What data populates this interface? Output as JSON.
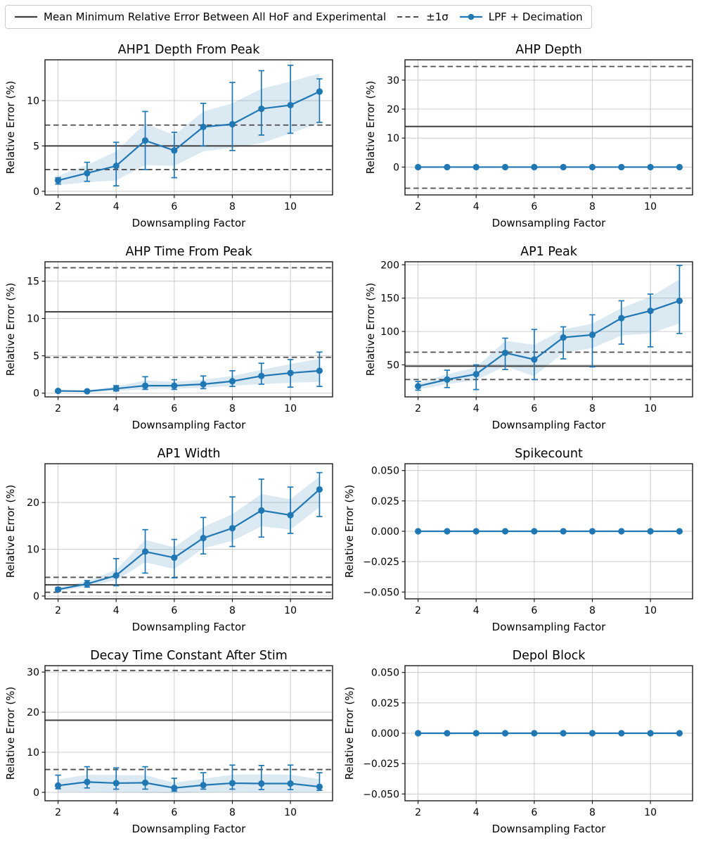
{
  "legend": {
    "items": [
      {
        "type": "solid-line",
        "label": "Mean Minimum Relative Error Between All HoF and Experimental"
      },
      {
        "type": "dashed-line",
        "label": "±1σ"
      },
      {
        "type": "marker-line",
        "label": "LPF + Decimation"
      }
    ]
  },
  "colors": {
    "accent_blue": "#1f77b4",
    "band_fill": "#1f77b4",
    "band_opacity": 0.16,
    "mean_line": "#3f3f3f",
    "sigma_line": "#4d4d4d",
    "grid": "#cccccc",
    "frame": "#1a1a1a",
    "legend_border": "#cccccc"
  },
  "chart_data": [
    {
      "type": "line",
      "title": "AHP1 Depth From Peak",
      "xlabel": "Downsampling Factor",
      "ylabel": "Relative Error (%)",
      "x": [
        2,
        3,
        4,
        5,
        6,
        7,
        8,
        9,
        10,
        11
      ],
      "y": [
        1.2,
        2.0,
        2.8,
        5.6,
        4.5,
        7.1,
        7.4,
        9.1,
        9.5,
        11.0
      ],
      "err_lo": [
        0.8,
        1.1,
        0.6,
        2.4,
        1.5,
        5.0,
        4.5,
        6.2,
        6.4,
        7.6
      ],
      "err_hi": [
        1.5,
        3.2,
        5.4,
        8.8,
        6.5,
        9.7,
        12.0,
        13.3,
        13.9,
        12.4
      ],
      "band_lo": [
        0.7,
        1.0,
        1.2,
        2.9,
        2.8,
        4.4,
        4.8,
        5.3,
        6.4,
        7.5
      ],
      "band_hi": [
        1.7,
        2.9,
        4.4,
        7.5,
        6.2,
        8.8,
        9.7,
        11.3,
        12.1,
        13.0
      ],
      "mean_line": 5.0,
      "sigma_upper": 7.3,
      "sigma_lower": 2.4,
      "xlim": [
        1.55,
        11.45
      ],
      "ylim": [
        -0.4,
        14.5
      ],
      "xticks": [
        2,
        4,
        6,
        8,
        10
      ],
      "xtick_labels": [
        "2",
        "4",
        "6",
        "8",
        "10"
      ],
      "yticks": [
        0,
        5,
        10
      ],
      "ytick_labels": [
        "0",
        "5",
        "10"
      ]
    },
    {
      "type": "line",
      "title": "AHP Depth",
      "xlabel": "Downsampling Factor",
      "ylabel": "Relative Error (%)",
      "x": [
        2,
        3,
        4,
        5,
        6,
        7,
        8,
        9,
        10,
        11
      ],
      "y": [
        0,
        0,
        0,
        0,
        0,
        0,
        0,
        0,
        0,
        0
      ],
      "err_lo": null,
      "err_hi": null,
      "band_lo": null,
      "band_hi": null,
      "mean_line": 14.0,
      "sigma_upper": 34.7,
      "sigma_lower": -7.3,
      "xlim": [
        1.55,
        11.45
      ],
      "ylim": [
        -9.6,
        37
      ],
      "xticks": [
        2,
        4,
        6,
        8,
        10
      ],
      "xtick_labels": [
        "2",
        "4",
        "6",
        "8",
        "10"
      ],
      "yticks": [
        0,
        10,
        20,
        30
      ],
      "ytick_labels": [
        "0",
        "10",
        "20",
        "30"
      ]
    },
    {
      "type": "line",
      "title": "AHP Time From Peak",
      "xlabel": "Downsampling Factor",
      "ylabel": "Relative Error (%)",
      "x": [
        2,
        3,
        4,
        5,
        6,
        7,
        8,
        9,
        10,
        11
      ],
      "y": [
        0.3,
        0.25,
        0.6,
        1.0,
        1.0,
        1.2,
        1.6,
        2.3,
        2.7,
        3.0
      ],
      "err_lo": [
        0.2,
        0.15,
        0.3,
        0.5,
        0.5,
        0.6,
        0.9,
        1.2,
        0.8,
        0.9
      ],
      "err_hi": [
        0.45,
        0.35,
        1.0,
        2.2,
        1.8,
        2.3,
        3.0,
        4.0,
        4.5,
        5.5
      ],
      "band_lo": [
        0.2,
        0.15,
        0.3,
        0.5,
        0.6,
        0.7,
        1.0,
        1.2,
        1.4,
        1.5
      ],
      "band_hi": [
        0.4,
        0.35,
        0.9,
        1.7,
        1.5,
        1.8,
        2.3,
        3.1,
        3.9,
        4.6
      ],
      "mean_line": 10.9,
      "sigma_upper": 16.8,
      "sigma_lower": 4.8,
      "xlim": [
        1.55,
        11.45
      ],
      "ylim": [
        -0.5,
        17.6
      ],
      "xticks": [
        2,
        4,
        6,
        8,
        10
      ],
      "xtick_labels": [
        "2",
        "4",
        "6",
        "8",
        "10"
      ],
      "yticks": [
        0,
        5,
        10,
        15
      ],
      "ytick_labels": [
        "0",
        "5",
        "10",
        "15"
      ]
    },
    {
      "type": "line",
      "title": "AP1 Peak",
      "xlabel": "Downsampling Factor",
      "ylabel": "Relative Error (%)",
      "x": [
        2,
        3,
        4,
        5,
        6,
        7,
        8,
        9,
        10,
        11
      ],
      "y": [
        18,
        28,
        36,
        68,
        58,
        91,
        95,
        120,
        131,
        146
      ],
      "err_lo": [
        12,
        16,
        13,
        43,
        28,
        59,
        47,
        81,
        77,
        97
      ],
      "err_hi": [
        25,
        42,
        50,
        90,
        103,
        107,
        125,
        146,
        156,
        199
      ],
      "band_lo": [
        13,
        21,
        27,
        48,
        33,
        68,
        75,
        94,
        97,
        112
      ],
      "band_hi": [
        22,
        36,
        46,
        86,
        80,
        103,
        112,
        135,
        152,
        178
      ],
      "mean_line": 48,
      "sigma_upper": 69,
      "sigma_lower": 28,
      "xlim": [
        1.55,
        11.45
      ],
      "ylim": [
        2,
        204.5
      ],
      "xticks": [
        2,
        4,
        6,
        8,
        10
      ],
      "xtick_labels": [
        "2",
        "4",
        "6",
        "8",
        "10"
      ],
      "yticks": [
        50,
        100,
        150,
        200
      ],
      "ytick_labels": [
        "50",
        "100",
        "150",
        "200"
      ]
    },
    {
      "type": "line",
      "title": "AP1 Width",
      "xlabel": "Downsampling Factor",
      "ylabel": "Relative Error (%)",
      "x": [
        2,
        3,
        4,
        5,
        6,
        7,
        8,
        9,
        10,
        11
      ],
      "y": [
        1.4,
        2.6,
        4.4,
        9.5,
        8.2,
        12.4,
        14.5,
        18.3,
        17.3,
        22.8
      ],
      "err_lo": [
        1.0,
        1.9,
        2.2,
        4.9,
        3.9,
        9.0,
        10.6,
        12.6,
        13.4,
        17.0
      ],
      "err_hi": [
        1.8,
        3.3,
        8.0,
        14.2,
        12.1,
        16.8,
        21.2,
        25.0,
        23.3,
        26.4
      ],
      "band_lo": [
        1.1,
        2.0,
        3.4,
        7.2,
        5.8,
        10.2,
        11.8,
        14.9,
        14.2,
        19.0
      ],
      "band_hi": [
        1.8,
        3.2,
        5.6,
        12.0,
        10.4,
        14.8,
        17.5,
        21.8,
        20.7,
        25.6
      ],
      "mean_line": 2.4,
      "sigma_upper": 4.0,
      "sigma_lower": 0.8,
      "xlim": [
        1.55,
        11.45
      ],
      "ylim": [
        -0.6,
        28.3
      ],
      "xticks": [
        2,
        4,
        6,
        8,
        10
      ],
      "xtick_labels": [
        "2",
        "4",
        "6",
        "8",
        "10"
      ],
      "yticks": [
        0,
        10,
        20
      ],
      "ytick_labels": [
        "0",
        "10",
        "20"
      ]
    },
    {
      "type": "line",
      "title": "Spikecount",
      "xlabel": "Downsampling Factor",
      "ylabel": "Relative Error (%)",
      "x": [
        2,
        3,
        4,
        5,
        6,
        7,
        8,
        9,
        10,
        11
      ],
      "y": [
        0,
        0,
        0,
        0,
        0,
        0,
        0,
        0,
        0,
        0
      ],
      "err_lo": null,
      "err_hi": null,
      "band_lo": null,
      "band_hi": null,
      "mean_line": null,
      "sigma_upper": null,
      "sigma_lower": null,
      "xlim": [
        1.55,
        11.45
      ],
      "ylim": [
        -0.0556,
        0.0556
      ],
      "xticks": [
        2,
        4,
        6,
        8,
        10
      ],
      "xtick_labels": [
        "2",
        "4",
        "6",
        "8",
        "10"
      ],
      "yticks": [
        -0.05,
        -0.025,
        0,
        0.025,
        0.05
      ],
      "ytick_labels": [
        "−0.050",
        "−0.025",
        "0.000",
        "0.025",
        "0.050"
      ]
    },
    {
      "type": "line",
      "title": "Decay Time Constant After Stim",
      "xlabel": "Downsampling Factor",
      "ylabel": "Relative Error (%)",
      "x": [
        2,
        3,
        4,
        5,
        6,
        7,
        8,
        9,
        10,
        11
      ],
      "y": [
        1.7,
        2.6,
        2.3,
        2.4,
        1.1,
        1.8,
        2.3,
        2.2,
        2.2,
        1.4
      ],
      "err_lo": [
        0.9,
        1.1,
        0.8,
        0.8,
        0.3,
        0.8,
        0.8,
        0.7,
        0.7,
        0.5
      ],
      "err_hi": [
        4.3,
        6.4,
        6.1,
        6.4,
        3.5,
        4.9,
        6.8,
        6.7,
        6.8,
        4.9
      ],
      "band_lo": [
        0.1,
        0.1,
        0.0,
        -0.1,
        -0.2,
        0.0,
        0.1,
        0.0,
        -0.1,
        0.0
      ],
      "band_hi": [
        3.2,
        4.4,
        4.3,
        4.3,
        2.4,
        3.4,
        4.4,
        4.5,
        4.4,
        3.3
      ],
      "mean_line": 18.0,
      "sigma_upper": 30.4,
      "sigma_lower": 5.7,
      "xlim": [
        1.55,
        11.45
      ],
      "ylim": [
        -2.1,
        31.6
      ],
      "xticks": [
        2,
        4,
        6,
        8,
        10
      ],
      "xtick_labels": [
        "2",
        "4",
        "6",
        "8",
        "10"
      ],
      "yticks": [
        0,
        10,
        20,
        30
      ],
      "ytick_labels": [
        "0",
        "10",
        "20",
        "30"
      ]
    },
    {
      "type": "line",
      "title": "Depol Block",
      "xlabel": "Downsampling Factor",
      "ylabel": "Relative Error (%)",
      "x": [
        2,
        3,
        4,
        5,
        6,
        7,
        8,
        9,
        10,
        11
      ],
      "y": [
        0,
        0,
        0,
        0,
        0,
        0,
        0,
        0,
        0,
        0
      ],
      "err_lo": null,
      "err_hi": null,
      "band_lo": null,
      "band_hi": null,
      "mean_line": null,
      "sigma_upper": null,
      "sigma_lower": null,
      "xlim": [
        1.55,
        11.45
      ],
      "ylim": [
        -0.0556,
        0.0556
      ],
      "xticks": [
        2,
        4,
        6,
        8,
        10
      ],
      "xtick_labels": [
        "2",
        "4",
        "6",
        "8",
        "10"
      ],
      "yticks": [
        -0.05,
        -0.025,
        0,
        0.025,
        0.05
      ],
      "ytick_labels": [
        "−0.050",
        "−0.025",
        "0.000",
        "0.025",
        "0.050"
      ]
    }
  ]
}
